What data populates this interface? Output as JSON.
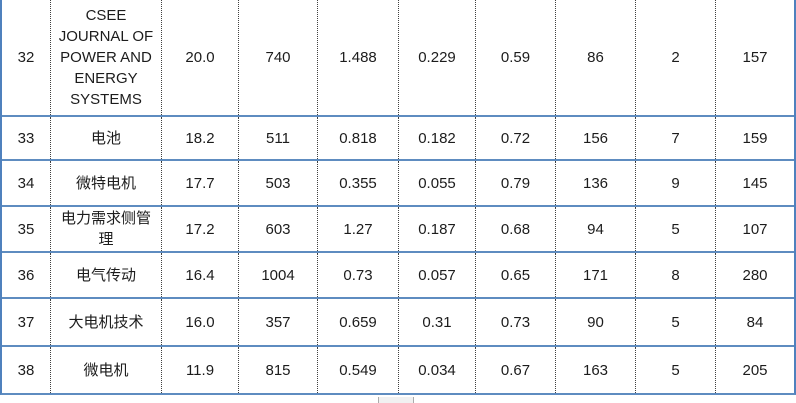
{
  "colors": {
    "outer_border": "#4f81bd",
    "row_separator": "#5e8cc0",
    "column_divider_dotted": "#404040",
    "text": "#1c1c1c",
    "scroll_stub_bg": "#f1f1f1",
    "scroll_stub_edge": "#ababab"
  },
  "chart_data": {
    "type": "table",
    "notes": "Cropped journal-metrics table, rows 32-38 visible, no header row visible",
    "rows": [
      [
        "32",
        "CSEE JOURNAL OF POWER AND ENERGY SYSTEMS",
        "20.0",
        "740",
        "1.488",
        "0.229",
        "0.59",
        "86",
        "2",
        "157"
      ],
      [
        "33",
        "电池",
        "18.2",
        "511",
        "0.818",
        "0.182",
        "0.72",
        "156",
        "7",
        "159"
      ],
      [
        "34",
        "微特电机",
        "17.7",
        "503",
        "0.355",
        "0.055",
        "0.79",
        "136",
        "9",
        "145"
      ],
      [
        "35",
        "电力需求侧管理",
        "17.2",
        "603",
        "1.27",
        "0.187",
        "0.68",
        "94",
        "5",
        "107"
      ],
      [
        "36",
        "电气传动",
        "16.4",
        "1004",
        "0.73",
        "0.057",
        "0.65",
        "171",
        "8",
        "280"
      ],
      [
        "37",
        "大电机技术",
        "16.0",
        "357",
        "0.659",
        "0.31",
        "0.73",
        "90",
        "5",
        "84"
      ],
      [
        "38",
        "微电机",
        "11.9",
        "815",
        "0.549",
        "0.034",
        "0.67",
        "163",
        "5",
        "205"
      ]
    ]
  },
  "table": {
    "rows": [
      {
        "cells": [
          "32",
          "CSEE JOURNAL OF POWER AND ENERGY SYSTEMS",
          "20.0",
          "740",
          "1.488",
          "0.229",
          "0.59",
          "86",
          "2",
          "157"
        ]
      },
      {
        "cells": [
          "33",
          "电池",
          "18.2",
          "511",
          "0.818",
          "0.182",
          "0.72",
          "156",
          "7",
          "159"
        ]
      },
      {
        "cells": [
          "34",
          "微特电机",
          "17.7",
          "503",
          "0.355",
          "0.055",
          "0.79",
          "136",
          "9",
          "145"
        ]
      },
      {
        "cells": [
          "35",
          "电力需求侧管理",
          "17.2",
          "603",
          "1.27",
          "0.187",
          "0.68",
          "94",
          "5",
          "107"
        ]
      },
      {
        "cells": [
          "36",
          "电气传动",
          "16.4",
          "1004",
          "0.73",
          "0.057",
          "0.65",
          "171",
          "8",
          "280"
        ]
      },
      {
        "cells": [
          "37",
          "大电机技术",
          "16.0",
          "357",
          "0.659",
          "0.31",
          "0.73",
          "90",
          "5",
          "84"
        ]
      },
      {
        "cells": [
          "38",
          "微电机",
          "11.9",
          "815",
          "0.549",
          "0.034",
          "0.67",
          "163",
          "5",
          "205"
        ]
      }
    ]
  }
}
